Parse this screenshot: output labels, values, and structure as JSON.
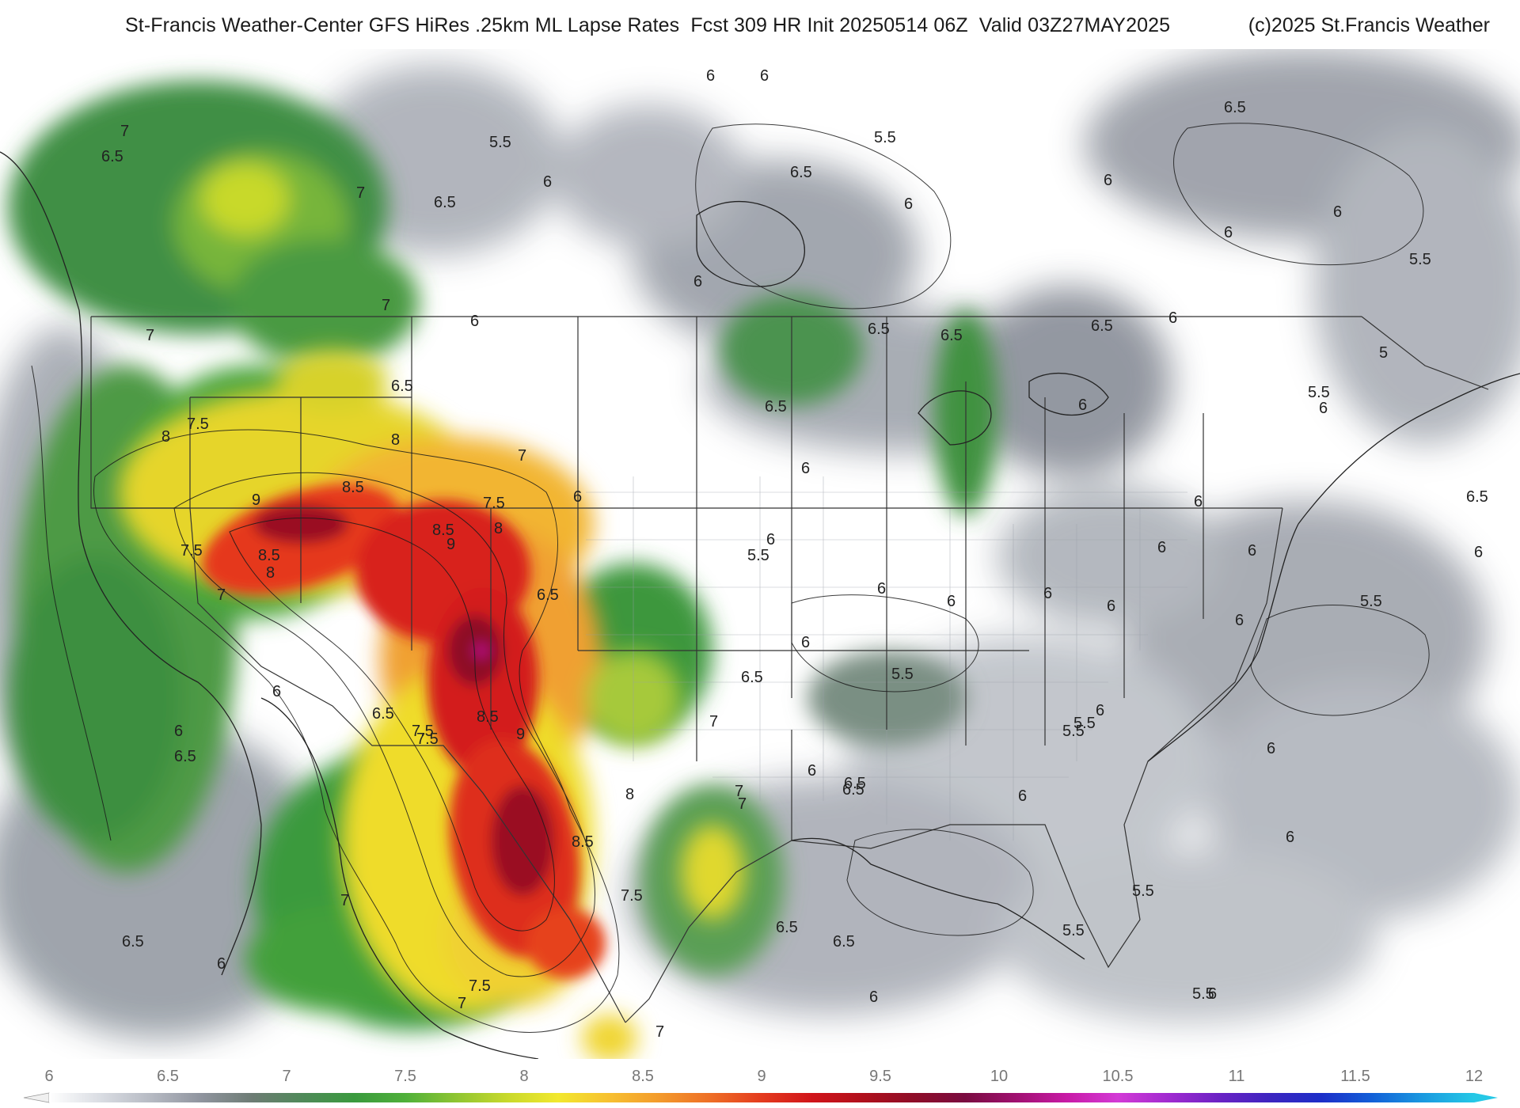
{
  "header": {
    "title": "St-Francis Weather-Center GFS HiRes .25km ML Lapse Rates  Fcst 309 HR Init 20250514 06Z  Valid 03Z27MAY2025",
    "copyright": "(c)2025 St.Francis Weather"
  },
  "colorbar": {
    "ticks": [
      "6",
      "6.5",
      "7",
      "7.5",
      "8",
      "8.5",
      "9",
      "9.5",
      "10",
      "10.5",
      "11",
      "11.5",
      "12"
    ],
    "stops": [
      "#ffffff",
      "#dadde3",
      "#b6bac3",
      "#8f949e",
      "#6d7c74",
      "#4f8a59",
      "#3a9a3e",
      "#4fb03a",
      "#8fc532",
      "#c8d92c",
      "#f2e82e",
      "#f7c030",
      "#f39a2c",
      "#ee6e26",
      "#e43b1e",
      "#d0141a",
      "#b0101c",
      "#8e0d28",
      "#7a0c40",
      "#a01070",
      "#c81aa6",
      "#d33ad6",
      "#a02ad0",
      "#6a22c4",
      "#3c25c0",
      "#1c2ec8",
      "#1260d8",
      "#1a9ae0",
      "#25c8e6"
    ]
  },
  "map_labels": {
    "l1": "7",
    "l2": "6.5",
    "l3": "7",
    "l4": "6.5",
    "l5": "5.5",
    "l6": "6",
    "l7": "6",
    "l8": "6",
    "l9": "5.5",
    "l10": "6.5",
    "l11": "6",
    "l12": "6.5",
    "l13": "6",
    "l14": "6",
    "l15": "6",
    "l16": "5.5",
    "l17": "7",
    "l18": "7",
    "l19": "6",
    "l20": "6",
    "l21": "6.5",
    "l22": "6.5",
    "l23": "6.5",
    "l24": "6",
    "l25": "5",
    "l26": "6.5",
    "l27": "6.5",
    "l28": "7.5",
    "l29": "8",
    "l30": "8",
    "l31": "6",
    "l32": "5.5",
    "l33": "6",
    "l34": "6",
    "l35": "9",
    "l36": "8.5",
    "l37": "7.5",
    "l38": "8.5",
    "l39": "9",
    "l40": "8",
    "l41": "6",
    "l42": "6",
    "l43": "8.5",
    "l44": "8",
    "l45": "7.5",
    "l46": "7",
    "l47": "7",
    "l48": "6.5",
    "l49": "6",
    "l50": "5.5",
    "l51": "6",
    "l52": "6",
    "l53": "6",
    "l54": "5.5",
    "l55": "6",
    "l56": "6.5",
    "l57": "7",
    "l58": "6.5",
    "l59": "7.5",
    "l60": "8.5",
    "l61": "9",
    "l62": "6",
    "l63": "6",
    "l64": "5.5",
    "l65": "6",
    "l66": "6",
    "l67": "6.5",
    "l68": "8",
    "l69": "8.5",
    "l70": "7",
    "l71": "6",
    "l72": "6",
    "l73": "6.5",
    "l74": "6",
    "l75": "7.5",
    "l76": "5.5",
    "l77": "6",
    "l78": "5.5",
    "l79": "7",
    "l80": "6.5",
    "l81": "6.5",
    "l82": "7",
    "l83": "6.5",
    "l84": "6",
    "l85": "7.5",
    "l86": "7",
    "l87": "5.5",
    "l88": "6",
    "l89": "5.5",
    "l90": "6",
    "l91": "7.5",
    "l92": "7",
    "l93": "6",
    "l94": "6",
    "l95": "6",
    "l96": "5.5",
    "l97": "6.5",
    "l98": "6",
    "l99": "6.5"
  }
}
